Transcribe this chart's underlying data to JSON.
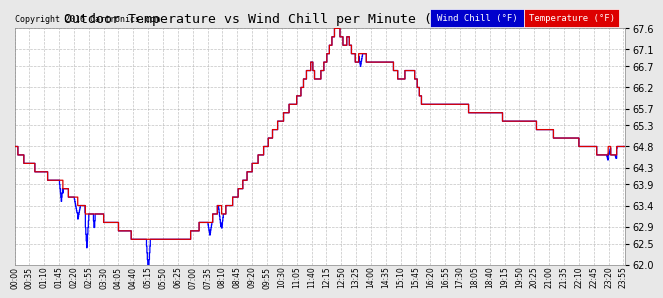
{
  "title": "Outdoor Temperature vs Wind Chill per Minute (24 Hours) 20160924",
  "copyright": "Copyright 2016 Cartronics.com",
  "legend_wind_chill": "Wind Chill (°F)",
  "legend_temperature": "Temperature (°F)",
  "ylim": [
    62.0,
    67.6
  ],
  "yticks": [
    62.0,
    62.5,
    62.9,
    63.4,
    63.9,
    64.3,
    64.8,
    65.3,
    65.7,
    66.2,
    66.7,
    67.1,
    67.6
  ],
  "figure_bg_color": "#e8e8e8",
  "plot_bg_color": "#ffffff",
  "grid_color": "#aaaaaa",
  "wind_chill_color": "#0000ff",
  "temperature_color": "#dd0000",
  "legend_wc_bg": "#0000cc",
  "legend_temp_bg": "#dd0000"
}
